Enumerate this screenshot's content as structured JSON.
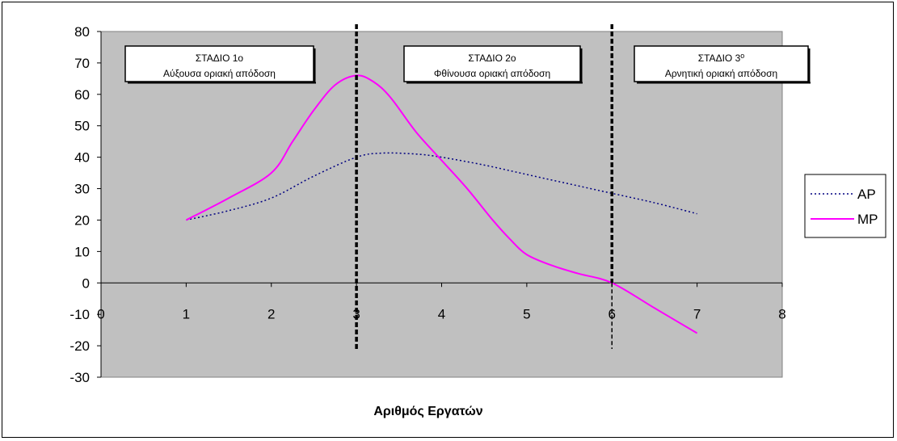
{
  "chart_data": {
    "type": "line",
    "title": "",
    "xlabel": "Αριθμός Εργατών",
    "ylabel": "",
    "xlim": [
      0,
      8
    ],
    "ylim": [
      -30,
      80
    ],
    "x_ticks": [
      0,
      1,
      2,
      3,
      4,
      5,
      6,
      7,
      8
    ],
    "y_ticks": [
      -30,
      -20,
      -10,
      0,
      10,
      20,
      30,
      40,
      50,
      60,
      70,
      80
    ],
    "grid": false,
    "legend_position": "right",
    "plot_background": "#c0c0c0",
    "series": [
      {
        "name": "AP",
        "style": "dotted",
        "color": "#000080",
        "x": [
          1,
          1.5,
          2,
          2.5,
          3,
          3.3,
          3.7,
          4,
          4.5,
          5,
          5.5,
          6,
          6.5,
          7
        ],
        "y": [
          20,
          23,
          27,
          34,
          40,
          41.3,
          41,
          40,
          37.5,
          34.5,
          31.5,
          28.5,
          25.5,
          22
        ]
      },
      {
        "name": "MP",
        "style": "solid",
        "color": "#ff00ff",
        "x": [
          1,
          1.5,
          2,
          2.25,
          2.5,
          2.75,
          3,
          3.2,
          3.4,
          3.7,
          4,
          4.3,
          4.6,
          4.8,
          5,
          5.3,
          5.6,
          6,
          6.5,
          7
        ],
        "y": [
          20,
          27,
          35,
          45,
          55,
          63,
          66,
          64,
          59,
          48,
          39,
          30,
          20,
          14,
          9,
          5.5,
          3,
          0,
          -8,
          -16
        ]
      }
    ],
    "stage_lines": [
      {
        "x": 3,
        "style": "thick-dashed"
      },
      {
        "x": 6,
        "style": "mixed-dashed"
      }
    ],
    "annotations": [
      {
        "title": "ΣΤΑΔΙΟ 1ο",
        "subtitle": "Αύξουσα οριακή απόδοση"
      },
      {
        "title": "ΣΤΑΔΙΟ 2ο",
        "subtitle": "Φθίνουσα οριακή απόδοση"
      },
      {
        "title": "ΣΤΑΔΙΟ 3",
        "superscript": "ο",
        "subtitle": "Αρνητική οριακή απόδοση"
      }
    ]
  }
}
